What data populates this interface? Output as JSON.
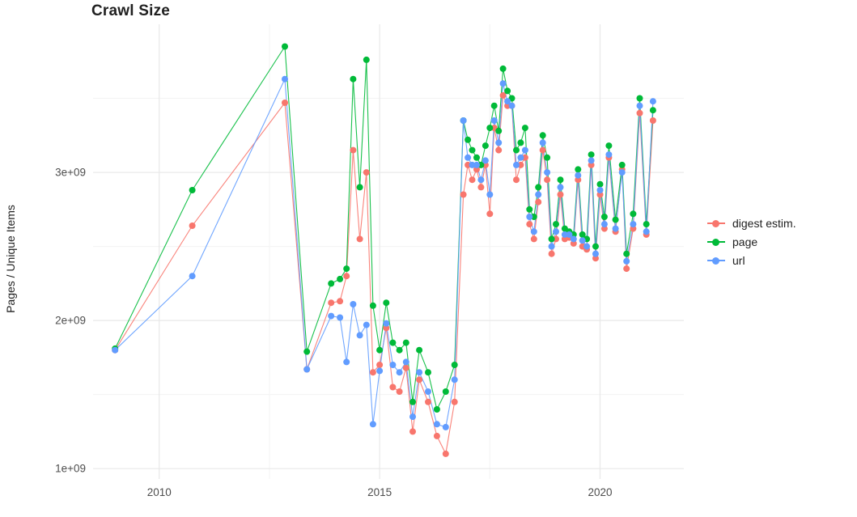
{
  "chart_data": {
    "type": "scatter-line",
    "title": "Crawl Size",
    "xlabel": "",
    "ylabel": "Pages / Unique Items",
    "y_unit": "values in billions (1e+09)",
    "xlim": [
      2008.5,
      2021.9
    ],
    "ylim_billions": [
      0.93,
      4.0
    ],
    "grid": true,
    "legend_position": "right",
    "x_ticks": [
      {
        "value": 2010,
        "label": "2010"
      },
      {
        "value": 2015,
        "label": "2015"
      },
      {
        "value": 2020,
        "label": "2020"
      }
    ],
    "y_ticks": [
      {
        "value": 1,
        "label": "1e+09"
      },
      {
        "value": 2,
        "label": "2e+09"
      },
      {
        "value": 3,
        "label": "3e+09"
      }
    ],
    "x_minor_gridlines": [
      2012.5,
      2017.5
    ],
    "y_minor_gridlines": [
      1.5,
      2.5,
      3.5
    ],
    "x": [
      2009.0,
      2010.75,
      2012.85,
      2013.35,
      2013.9,
      2014.1,
      2014.25,
      2014.4,
      2014.55,
      2014.7,
      2014.85,
      2015.0,
      2015.15,
      2015.3,
      2015.45,
      2015.6,
      2015.75,
      2015.9,
      2016.1,
      2016.3,
      2016.5,
      2016.7,
      2016.9,
      2017.0,
      2017.1,
      2017.2,
      2017.3,
      2017.4,
      2017.5,
      2017.6,
      2017.7,
      2017.8,
      2017.9,
      2018.0,
      2018.1,
      2018.2,
      2018.3,
      2018.4,
      2018.5,
      2018.6,
      2018.7,
      2018.8,
      2018.9,
      2019.0,
      2019.1,
      2019.2,
      2019.3,
      2019.4,
      2019.5,
      2019.6,
      2019.7,
      2019.8,
      2019.9,
      2020.0,
      2020.1,
      2020.2,
      2020.35,
      2020.5,
      2020.6,
      2020.75,
      2020.9,
      2021.05,
      2021.2
    ],
    "series": [
      {
        "name": "digest estim.",
        "color": "#F8766D",
        "values": [
          1.8,
          2.64,
          3.47,
          1.67,
          2.12,
          2.13,
          2.3,
          3.15,
          2.55,
          3.0,
          1.65,
          1.7,
          1.95,
          1.55,
          1.52,
          1.68,
          1.25,
          1.6,
          1.45,
          1.22,
          1.1,
          1.45,
          2.85,
          3.05,
          2.95,
          3.02,
          2.9,
          3.05,
          2.72,
          3.3,
          3.15,
          3.52,
          3.45,
          3.45,
          2.95,
          3.05,
          3.1,
          2.65,
          2.55,
          2.8,
          3.15,
          2.95,
          2.45,
          2.55,
          2.85,
          2.55,
          2.56,
          2.52,
          2.95,
          2.5,
          2.48,
          3.05,
          2.42,
          2.85,
          2.62,
          3.1,
          2.6,
          3.02,
          2.35,
          2.62,
          3.4,
          2.58,
          3.35
        ]
      },
      {
        "name": "page",
        "color": "#00BA38",
        "values": [
          1.81,
          2.88,
          3.85,
          1.79,
          2.25,
          2.28,
          2.35,
          3.63,
          2.9,
          3.76,
          2.1,
          1.8,
          2.12,
          1.85,
          1.8,
          1.85,
          1.45,
          1.8,
          1.65,
          1.4,
          1.52,
          1.7,
          3.35,
          3.22,
          3.15,
          3.1,
          3.05,
          3.18,
          3.3,
          3.45,
          3.28,
          3.7,
          3.55,
          3.5,
          3.15,
          3.2,
          3.3,
          2.75,
          2.7,
          2.9,
          3.25,
          3.1,
          2.55,
          2.65,
          2.95,
          2.62,
          2.6,
          2.58,
          3.02,
          2.58,
          2.55,
          3.12,
          2.5,
          2.92,
          2.7,
          3.18,
          2.68,
          3.05,
          2.45,
          2.72,
          3.5,
          2.65,
          3.42
        ]
      },
      {
        "name": "url",
        "color": "#619CFF",
        "values": [
          1.8,
          2.3,
          3.63,
          1.67,
          2.03,
          2.02,
          1.72,
          2.11,
          1.9,
          1.97,
          1.3,
          1.66,
          1.98,
          1.7,
          1.65,
          1.72,
          1.35,
          1.65,
          1.52,
          1.3,
          1.28,
          1.6,
          3.35,
          3.1,
          3.05,
          3.05,
          2.95,
          3.08,
          2.85,
          3.35,
          3.2,
          3.6,
          3.48,
          3.45,
          3.05,
          3.1,
          3.15,
          2.7,
          2.6,
          2.85,
          3.2,
          3.0,
          2.5,
          2.6,
          2.9,
          2.58,
          2.58,
          2.55,
          2.98,
          2.54,
          2.5,
          3.08,
          2.45,
          2.88,
          2.65,
          3.12,
          2.62,
          3.0,
          2.4,
          2.65,
          3.45,
          2.6,
          3.48
        ]
      }
    ],
    "colors": {
      "grid_major": "#E8E8E8",
      "grid_minor": "#F3F3F3",
      "axis_text": "#4D4D4D",
      "title": "#1F1F1F"
    }
  }
}
